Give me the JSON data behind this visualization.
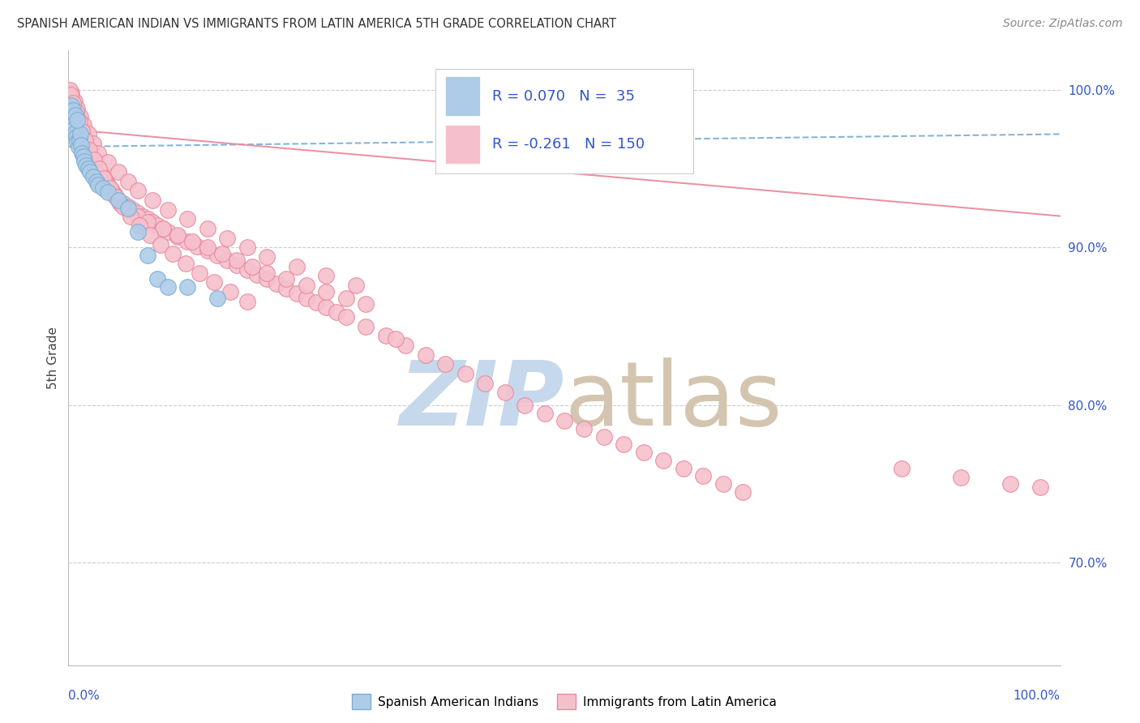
{
  "title": "SPANISH AMERICAN INDIAN VS IMMIGRANTS FROM LATIN AMERICA 5TH GRADE CORRELATION CHART",
  "source": "Source: ZipAtlas.com",
  "ylabel": "5th Grade",
  "xmin": 0.0,
  "xmax": 1.0,
  "ymin": 0.635,
  "ymax": 1.025,
  "yticks": [
    0.7,
    0.8,
    0.9,
    1.0
  ],
  "ytick_labels": [
    "70.0%",
    "80.0%",
    "90.0%",
    "100.0%"
  ],
  "r_blue": 0.07,
  "n_blue": 35,
  "r_pink": -0.261,
  "n_pink": 150,
  "blue_color": "#aecce8",
  "blue_edge_color": "#7aadd4",
  "pink_color": "#f5c0cc",
  "pink_edge_color": "#e8899a",
  "blue_line_color": "#7aadd4",
  "pink_line_color": "#e8899a",
  "legend_text_color": "#3355cc",
  "watermark_zip_color": "#c5d8ec",
  "watermark_atlas_color": "#d4c5b0",
  "blue_trend_start_y": 0.964,
  "blue_trend_end_y": 0.972,
  "pink_trend_start_y": 0.975,
  "pink_trend_end_y": 0.92,
  "blue_scatter_x": [
    0.002,
    0.003,
    0.004,
    0.005,
    0.006,
    0.007,
    0.008,
    0.009,
    0.01,
    0.011,
    0.012,
    0.013,
    0.014,
    0.015,
    0.016,
    0.018,
    0.02,
    0.022,
    0.025,
    0.028,
    0.03,
    0.035,
    0.04,
    0.05,
    0.06,
    0.07,
    0.08,
    0.09,
    0.1,
    0.12,
    0.003,
    0.005,
    0.007,
    0.009,
    0.15
  ],
  "blue_scatter_y": [
    0.988,
    0.985,
    0.982,
    0.979,
    0.976,
    0.973,
    0.97,
    0.967,
    0.964,
    0.968,
    0.972,
    0.965,
    0.96,
    0.958,
    0.955,
    0.952,
    0.95,
    0.948,
    0.945,
    0.942,
    0.94,
    0.938,
    0.935,
    0.93,
    0.925,
    0.91,
    0.895,
    0.88,
    0.875,
    0.875,
    0.99,
    0.987,
    0.984,
    0.981,
    0.868
  ],
  "pink_scatter_x": [
    0.002,
    0.003,
    0.004,
    0.005,
    0.006,
    0.007,
    0.008,
    0.009,
    0.01,
    0.011,
    0.012,
    0.013,
    0.014,
    0.015,
    0.016,
    0.017,
    0.018,
    0.019,
    0.02,
    0.022,
    0.024,
    0.026,
    0.028,
    0.03,
    0.032,
    0.034,
    0.036,
    0.038,
    0.04,
    0.042,
    0.044,
    0.046,
    0.048,
    0.05,
    0.055,
    0.06,
    0.065,
    0.07,
    0.075,
    0.08,
    0.085,
    0.09,
    0.095,
    0.1,
    0.11,
    0.12,
    0.13,
    0.14,
    0.15,
    0.16,
    0.17,
    0.18,
    0.19,
    0.2,
    0.21,
    0.22,
    0.23,
    0.24,
    0.25,
    0.26,
    0.27,
    0.28,
    0.3,
    0.32,
    0.34,
    0.36,
    0.38,
    0.4,
    0.42,
    0.44,
    0.46,
    0.48,
    0.5,
    0.52,
    0.54,
    0.56,
    0.58,
    0.6,
    0.62,
    0.64,
    0.66,
    0.68,
    0.004,
    0.007,
    0.01,
    0.013,
    0.016,
    0.019,
    0.023,
    0.027,
    0.032,
    0.038,
    0.045,
    0.052,
    0.06,
    0.07,
    0.08,
    0.095,
    0.11,
    0.125,
    0.14,
    0.155,
    0.17,
    0.185,
    0.2,
    0.22,
    0.24,
    0.26,
    0.28,
    0.3,
    0.003,
    0.006,
    0.009,
    0.012,
    0.015,
    0.02,
    0.025,
    0.03,
    0.04,
    0.05,
    0.06,
    0.07,
    0.085,
    0.1,
    0.12,
    0.14,
    0.16,
    0.18,
    0.2,
    0.23,
    0.26,
    0.29,
    0.001,
    0.84,
    0.9,
    0.95,
    0.98,
    0.002,
    0.33,
    0.005,
    0.008,
    0.011,
    0.014,
    0.017,
    0.021,
    0.026,
    0.031,
    0.036,
    0.042,
    0.048,
    0.055,
    0.063,
    0.072,
    0.082,
    0.093,
    0.105,
    0.118,
    0.132,
    0.147,
    0.163,
    0.18
  ],
  "pink_scatter_y": [
    0.998,
    0.995,
    0.992,
    0.99,
    0.988,
    0.986,
    0.984,
    0.982,
    0.98,
    0.978,
    0.976,
    0.974,
    0.972,
    0.97,
    0.968,
    0.966,
    0.964,
    0.962,
    0.96,
    0.958,
    0.956,
    0.954,
    0.952,
    0.95,
    0.948,
    0.946,
    0.944,
    0.942,
    0.94,
    0.938,
    0.936,
    0.934,
    0.932,
    0.93,
    0.928,
    0.926,
    0.924,
    0.922,
    0.92,
    0.918,
    0.916,
    0.914,
    0.912,
    0.91,
    0.907,
    0.904,
    0.901,
    0.898,
    0.895,
    0.892,
    0.889,
    0.886,
    0.883,
    0.88,
    0.877,
    0.874,
    0.871,
    0.868,
    0.865,
    0.862,
    0.859,
    0.856,
    0.85,
    0.844,
    0.838,
    0.832,
    0.826,
    0.82,
    0.814,
    0.808,
    0.8,
    0.795,
    0.79,
    0.785,
    0.78,
    0.775,
    0.77,
    0.765,
    0.76,
    0.755,
    0.75,
    0.745,
    0.995,
    0.988,
    0.982,
    0.976,
    0.97,
    0.964,
    0.958,
    0.952,
    0.946,
    0.94,
    0.934,
    0.928,
    0.924,
    0.92,
    0.916,
    0.912,
    0.908,
    0.904,
    0.9,
    0.896,
    0.892,
    0.888,
    0.884,
    0.88,
    0.876,
    0.872,
    0.868,
    0.864,
    0.998,
    0.993,
    0.988,
    0.983,
    0.978,
    0.972,
    0.966,
    0.96,
    0.954,
    0.948,
    0.942,
    0.936,
    0.93,
    0.924,
    0.918,
    0.912,
    0.906,
    0.9,
    0.894,
    0.888,
    0.882,
    0.876,
    1.0,
    0.76,
    0.754,
    0.75,
    0.748,
    0.997,
    0.842,
    0.992,
    0.986,
    0.98,
    0.974,
    0.968,
    0.962,
    0.956,
    0.95,
    0.944,
    0.938,
    0.932,
    0.926,
    0.92,
    0.914,
    0.908,
    0.902,
    0.896,
    0.89,
    0.884,
    0.878,
    0.872,
    0.866
  ]
}
